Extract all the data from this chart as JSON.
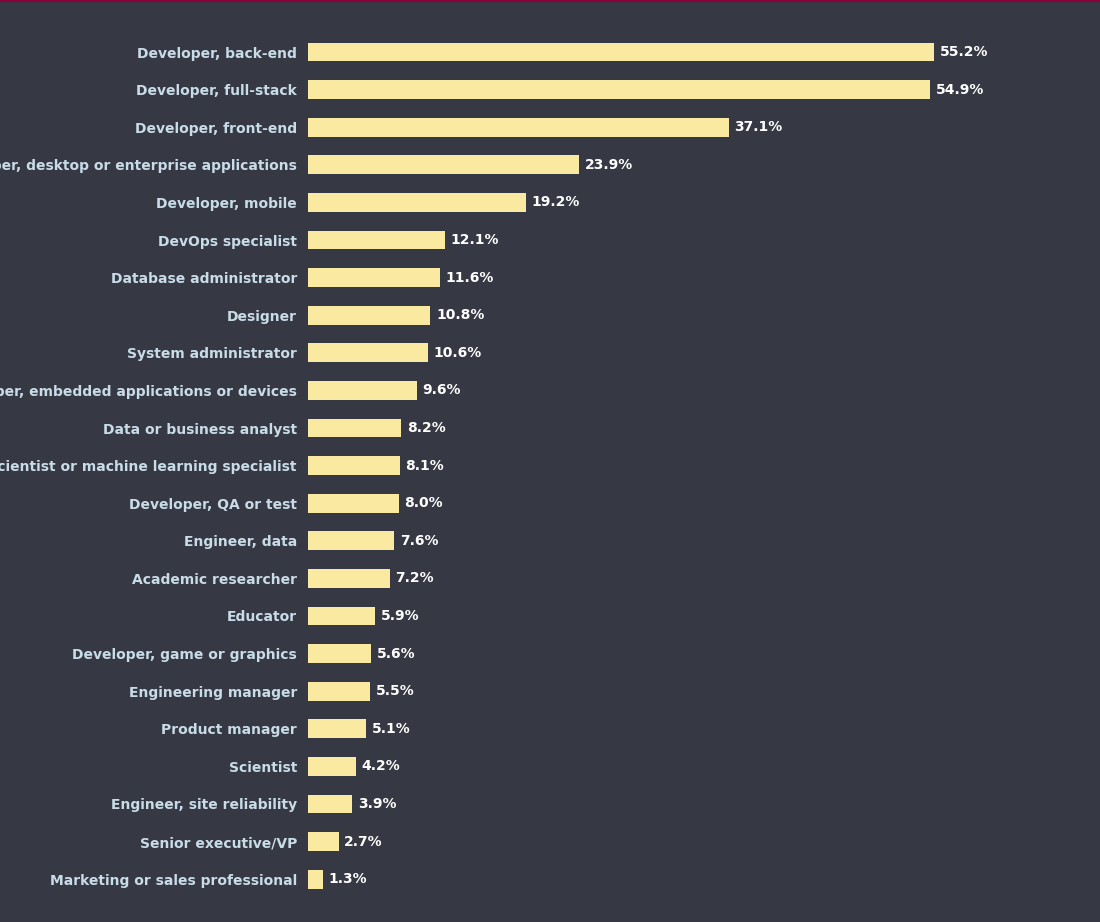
{
  "categories": [
    "Developer, back-end",
    "Developer, full-stack",
    "Developer, front-end",
    "Developer, desktop or enterprise applications",
    "Developer, mobile",
    "DevOps specialist",
    "Database administrator",
    "Designer",
    "System administrator",
    "Developer, embedded applications or devices",
    "Data or business analyst",
    "Data scientist or machine learning specialist",
    "Developer, QA or test",
    "Engineer, data",
    "Academic researcher",
    "Educator",
    "Developer, game or graphics",
    "Engineering manager",
    "Product manager",
    "Scientist",
    "Engineer, site reliability",
    "Senior executive/VP",
    "Marketing or sales professional"
  ],
  "values": [
    55.2,
    54.9,
    37.1,
    23.9,
    19.2,
    12.1,
    11.6,
    10.8,
    10.6,
    9.6,
    8.2,
    8.1,
    8.0,
    7.6,
    7.2,
    5.9,
    5.6,
    5.5,
    5.1,
    4.2,
    3.9,
    2.7,
    1.3
  ],
  "bar_color": "#FAE9A0",
  "label_color": "#c8dce8",
  "value_color": "#FFFFFF",
  "background_color": "#363844",
  "figure_background_color": "#363844",
  "label_fontsize": 10,
  "value_fontsize": 10,
  "bar_height": 0.5,
  "xlim": [
    0,
    65
  ],
  "top_line_color": "#8b0038"
}
